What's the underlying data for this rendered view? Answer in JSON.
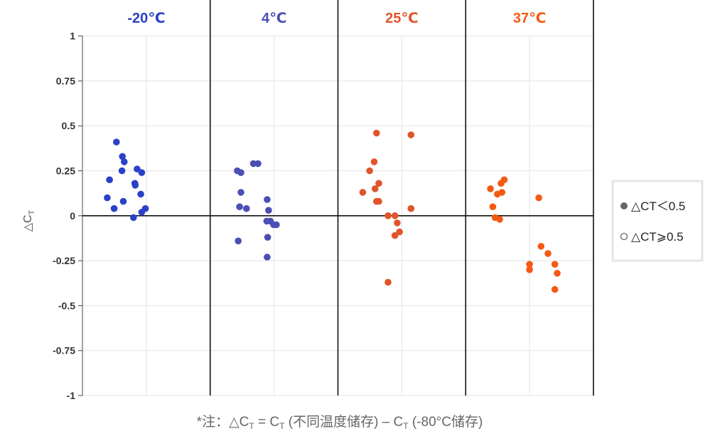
{
  "chart_data": {
    "type": "scatter",
    "panels": [
      {
        "label": "-20℃",
        "color": "#2a41c8"
      },
      {
        "label": "4℃",
        "color": "#4b4fb5"
      },
      {
        "label": "25℃",
        "color": "#e0542a"
      },
      {
        "label": "37℃",
        "color": "#f45a14"
      }
    ],
    "y_ticks": [
      {
        "value": 1,
        "label": "1"
      },
      {
        "value": 0.75,
        "label": "0.75"
      },
      {
        "value": 0.5,
        "label": "0.5"
      },
      {
        "value": 0.25,
        "label": "0.25"
      },
      {
        "value": 0,
        "label": "0"
      },
      {
        "value": -0.25,
        "label": "-0.25"
      },
      {
        "value": -0.5,
        "label": "-0.5"
      },
      {
        "value": -0.75,
        "label": "-0.75"
      },
      {
        "value": -1,
        "label": "-1"
      }
    ],
    "ylim": [
      -1,
      1.2
    ],
    "ylabel": "△C",
    "ylabel_subscript": "T",
    "footnote": {
      "prefix": "*注：△C",
      "sub1": "T",
      "mid": " = C",
      "sub2": "T",
      "mid2": " (不同温度储存) – C",
      "sub3": "T",
      "suffix": " (-80°C储存)"
    },
    "legend": {
      "position": "right",
      "items": [
        {
          "marker": "●",
          "label": "△CT＜0.5",
          "filled": true
        },
        {
          "marker": "○",
          "label": "△CT⩾0.5",
          "filled": false
        }
      ]
    },
    "series": [
      {
        "panel": 0,
        "points": [
          [
            0.35,
            0.41
          ],
          [
            0.2,
            0.2
          ],
          [
            0.15,
            0.1
          ],
          [
            0.3,
            0.04
          ],
          [
            0.48,
            0.33
          ],
          [
            0.52,
            0.3
          ],
          [
            0.47,
            0.25
          ],
          [
            0.5,
            0.08
          ],
          [
            0.8,
            0.26
          ],
          [
            0.9,
            0.24
          ],
          [
            0.75,
            0.18
          ],
          [
            0.76,
            0.17
          ],
          [
            0.88,
            0.12
          ],
          [
            0.98,
            0.04
          ],
          [
            0.9,
            0.02
          ],
          [
            0.72,
            -0.01
          ]
        ]
      },
      {
        "panel": 1,
        "points": [
          [
            0.2,
            0.25
          ],
          [
            0.28,
            0.24
          ],
          [
            0.28,
            0.13
          ],
          [
            0.25,
            0.05
          ],
          [
            0.4,
            0.04
          ],
          [
            0.22,
            -0.14
          ],
          [
            0.55,
            0.29
          ],
          [
            0.65,
            0.29
          ],
          [
            0.85,
            0.09
          ],
          [
            0.88,
            0.03
          ],
          [
            0.84,
            -0.03
          ],
          [
            0.92,
            -0.03
          ],
          [
            0.99,
            -0.05
          ],
          [
            1.05,
            -0.05
          ],
          [
            0.86,
            -0.12
          ],
          [
            0.85,
            -0.23
          ]
        ]
      },
      {
        "panel": 2,
        "points": [
          [
            0.45,
            0.46
          ],
          [
            1.2,
            0.45
          ],
          [
            0.4,
            0.3
          ],
          [
            0.3,
            0.25
          ],
          [
            0.5,
            0.18
          ],
          [
            0.42,
            0.15
          ],
          [
            0.15,
            0.13
          ],
          [
            0.45,
            0.08
          ],
          [
            0.5,
            0.08
          ],
          [
            1.2,
            0.04
          ],
          [
            0.7,
            0.0
          ],
          [
            0.85,
            0.0
          ],
          [
            0.9,
            -0.04
          ],
          [
            0.95,
            -0.09
          ],
          [
            0.85,
            -0.11
          ],
          [
            0.7,
            -0.37
          ]
        ]
      },
      {
        "panel": 3,
        "points": [
          [
            0.45,
            0.2
          ],
          [
            0.38,
            0.18
          ],
          [
            0.4,
            0.13
          ],
          [
            0.3,
            0.12
          ],
          [
            0.15,
            0.15
          ],
          [
            0.2,
            0.05
          ],
          [
            0.25,
            -0.01
          ],
          [
            0.35,
            -0.02
          ],
          [
            1.2,
            0.1
          ],
          [
            1.25,
            -0.17
          ],
          [
            1.4,
            -0.21
          ],
          [
            1.0,
            -0.27
          ],
          [
            1.55,
            -0.27
          ],
          [
            1.0,
            -0.3
          ],
          [
            1.6,
            -0.32
          ],
          [
            1.55,
            -0.41
          ]
        ]
      }
    ]
  }
}
